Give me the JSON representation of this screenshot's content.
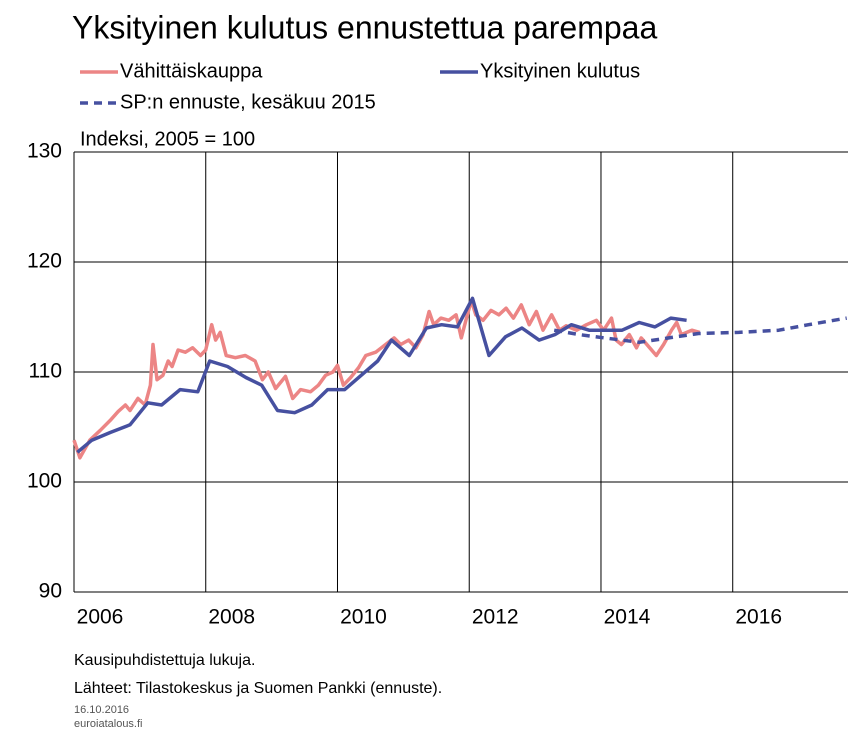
{
  "chart_data": {
    "type": "line",
    "title": "Yksityinen kulutus ennustettua parempaa",
    "y_label": "Indeksi, 2005 = 100",
    "notes": [
      "Kausipuhdistettuja lukuja.",
      "Lähteet: Tilastokeskus ja Suomen Pankki (ennuste).",
      "16.10.2016",
      "euroiatalous.fi"
    ],
    "xlim": [
      2006,
      2017.75
    ],
    "xticks": [
      2006,
      2008,
      2010,
      2012,
      2014,
      2016
    ],
    "ylim": [
      90,
      130
    ],
    "yticks": [
      90,
      100,
      110,
      120,
      130
    ],
    "grid": true,
    "series": [
      {
        "name": "Vähittäiskauppa",
        "color": "#ec8585",
        "line_style": "solid",
        "x": [
          2006.0,
          2006.09,
          2006.24,
          2006.4,
          2006.55,
          2006.67,
          2006.78,
          2006.85,
          2006.97,
          2007.08,
          2007.16,
          2007.2,
          2007.26,
          2007.35,
          2007.43,
          2007.49,
          2007.58,
          2007.69,
          2007.8,
          2007.92,
          2008.0,
          2008.09,
          2008.15,
          2008.22,
          2008.31,
          2008.45,
          2008.6,
          2008.75,
          2008.86,
          2008.95,
          2009.06,
          2009.21,
          2009.32,
          2009.44,
          2009.59,
          2009.71,
          2009.82,
          2009.93,
          2010.0,
          2010.09,
          2010.2,
          2010.32,
          2010.43,
          2010.58,
          2010.73,
          2010.86,
          2010.96,
          2011.08,
          2011.19,
          2011.3,
          2011.39,
          2011.46,
          2011.57,
          2011.69,
          2011.8,
          2011.88,
          2011.95,
          2012.03,
          2012.1,
          2012.21,
          2012.33,
          2012.45,
          2012.56,
          2012.67,
          2012.79,
          2012.91,
          2013.02,
          2013.12,
          2013.25,
          2013.37,
          2013.47,
          2013.63,
          2013.78,
          2013.93,
          2014.04,
          2014.16,
          2014.23,
          2014.31,
          2014.43,
          2014.54,
          2014.61,
          2014.74,
          2014.84,
          2014.95,
          2015.07,
          2015.15,
          2015.22,
          2015.38,
          2015.5
        ],
        "values": [
          103.8,
          102.2,
          103.8,
          104.7,
          105.6,
          106.4,
          107,
          106.5,
          107.6,
          107,
          108.8,
          112.5,
          109.3,
          109.7,
          111,
          110.5,
          112,
          111.8,
          112.2,
          111.5,
          112,
          114.3,
          112.9,
          113.6,
          111.5,
          111.3,
          111.5,
          111,
          109.3,
          110,
          108.5,
          109.6,
          107.6,
          108.4,
          108.2,
          108.8,
          109.7,
          110,
          110.6,
          108.8,
          109.5,
          110.4,
          111.5,
          111.8,
          112.5,
          113.1,
          112.5,
          112.9,
          112.2,
          113.4,
          115.5,
          114.3,
          114.9,
          114.7,
          115.2,
          113.1,
          114.7,
          116.5,
          115.2,
          114.7,
          115.6,
          115.2,
          115.8,
          114.9,
          116.1,
          114.3,
          115.5,
          113.8,
          115.2,
          113.8,
          114.2,
          113.8,
          114.3,
          114.7,
          113.8,
          114.9,
          112.9,
          112.5,
          113.4,
          112.2,
          113.1,
          112.2,
          111.5,
          112.5,
          113.8,
          114.5,
          113.4,
          113.8,
          113.6
        ]
      },
      {
        "name": "Yksityinen kulutus",
        "color": "#4650a0",
        "line_style": "solid",
        "x": [
          2006.05,
          2006.27,
          2006.55,
          2006.85,
          2007.12,
          2007.33,
          2007.61,
          2007.88,
          2008.06,
          2008.33,
          2008.61,
          2008.85,
          2009.09,
          2009.35,
          2009.61,
          2009.85,
          2010.11,
          2010.36,
          2010.61,
          2010.82,
          2011.09,
          2011.35,
          2011.58,
          2011.82,
          2012.05,
          2012.3,
          2012.55,
          2012.8,
          2013.06,
          2013.3,
          2013.55,
          2013.82,
          2014.08,
          2014.32,
          2014.58,
          2014.82,
          2015.06,
          2015.3
        ],
        "values": [
          102.7,
          103.8,
          104.5,
          105.2,
          107.2,
          107,
          108.4,
          108.2,
          111,
          110.5,
          109.5,
          108.8,
          106.5,
          106.3,
          107,
          108.4,
          108.4,
          109.7,
          111,
          112.9,
          111.5,
          114,
          114.3,
          114.1,
          116.7,
          111.5,
          113.2,
          114,
          112.9,
          113.4,
          114.3,
          113.8,
          113.8,
          113.8,
          114.5,
          114.1,
          114.9,
          114.7
        ]
      },
      {
        "name": "SP:n ennuste, kesäkuu 2015",
        "color": "#4650a0",
        "line_style": "dashed",
        "x": [
          2013.29,
          2013.67,
          2014.05,
          2014.58,
          2015.03,
          2015.48,
          2016.09,
          2016.7,
          2017.15,
          2017.73
        ],
        "values": [
          113.8,
          113.4,
          113.1,
          112.7,
          113.1,
          113.5,
          113.6,
          113.8,
          114.3,
          114.9
        ]
      }
    ]
  }
}
